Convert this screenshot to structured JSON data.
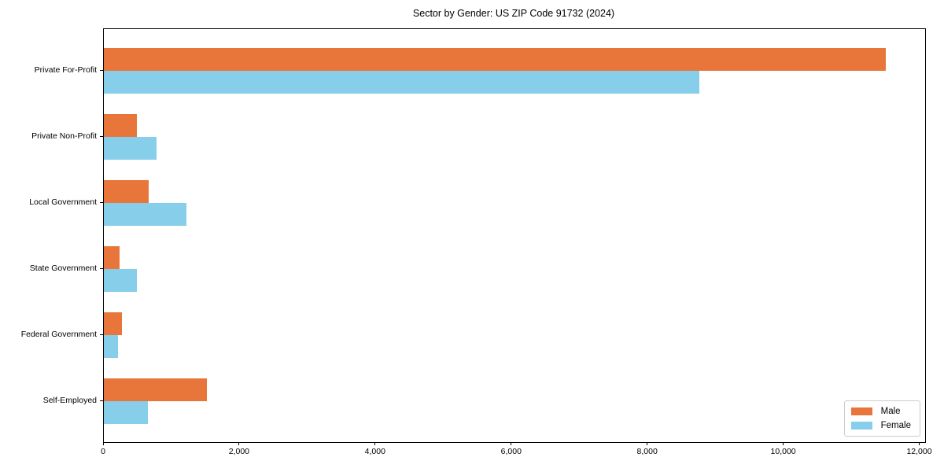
{
  "title": "Sector by Gender: US ZIP Code 91732 (2024)",
  "chart_data": {
    "type": "bar",
    "orientation": "horizontal",
    "title": "Sector by Gender: US ZIP Code 91732 (2024)",
    "categories": [
      "Private For-Profit",
      "Private Non-Profit",
      "Local Government",
      "State Government",
      "Federal Government",
      "Self-Employed"
    ],
    "series": [
      {
        "name": "Male",
        "color": "#E8763B",
        "values": [
          11500,
          490,
          660,
          230,
          260,
          1510
        ]
      },
      {
        "name": "Female",
        "color": "#87CEEB",
        "values": [
          8750,
          770,
          1210,
          490,
          210,
          650
        ]
      }
    ],
    "xlabel": "",
    "ylabel": "",
    "xlim": [
      0,
      12075
    ],
    "xticks": [
      0,
      2000,
      4000,
      6000,
      8000,
      10000,
      12000
    ],
    "xtick_labels": [
      "0",
      "2,000",
      "4,000",
      "6,000",
      "8,000",
      "10,000",
      "12,000"
    ],
    "grid": false,
    "legend_position": "lower right",
    "background_color": "#ffffff",
    "spine_color": "#000000"
  }
}
